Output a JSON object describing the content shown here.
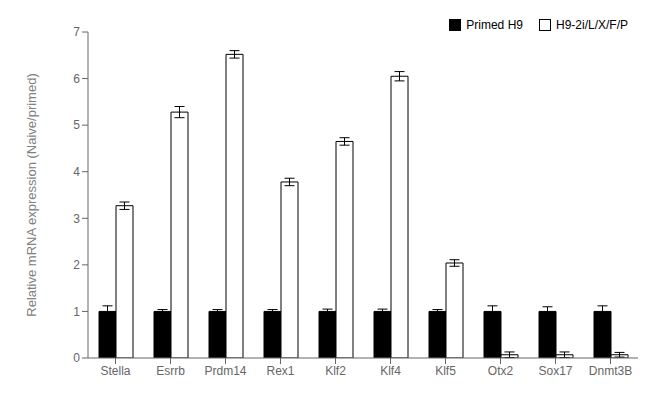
{
  "chart_data": {
    "type": "bar",
    "categories": [
      "Stella",
      "Esrrb",
      "Prdm14",
      "Rex1",
      "Klf2",
      "Klf4",
      "Klf5",
      "Otx2",
      "Sox17",
      "Dnmt3B"
    ],
    "series": [
      {
        "name": "Primed H9",
        "color": "#000000",
        "values": [
          1.0,
          1.0,
          1.0,
          1.0,
          1.0,
          1.0,
          1.0,
          1.0,
          1.0,
          1.0
        ],
        "errors": [
          0.12,
          0.04,
          0.04,
          0.04,
          0.05,
          0.05,
          0.04,
          0.12,
          0.1,
          0.12
        ]
      },
      {
        "name": "H9-2i/L/X/F/P",
        "color": "#ffffff",
        "values": [
          3.27,
          5.28,
          6.52,
          3.78,
          4.65,
          6.05,
          2.04,
          0.07,
          0.07,
          0.07
        ],
        "errors": [
          0.08,
          0.12,
          0.08,
          0.08,
          0.08,
          0.1,
          0.07,
          0.06,
          0.06,
          0.05
        ]
      }
    ],
    "ylabel": "Relative mRNA expression (Naive/primed)",
    "ylim": [
      0,
      7
    ],
    "yticks": [
      0,
      1,
      2,
      3,
      4,
      5,
      6,
      7
    ],
    "grid": false,
    "legend": "upper right"
  }
}
